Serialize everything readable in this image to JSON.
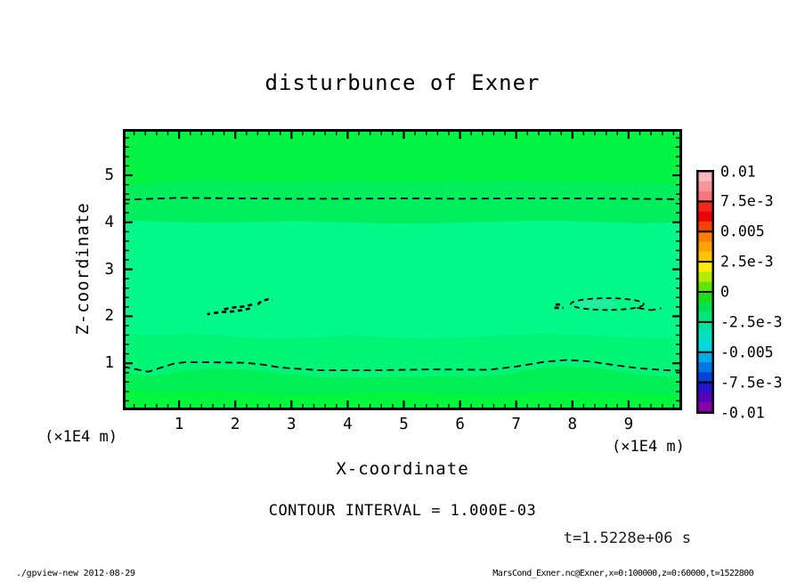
{
  "footer": {
    "left": "./gpview-new  2012-08-29",
    "right": "MarsCond_Exner.nc@Exner,x=0:100000,z=0:60000,t=1522800"
  },
  "chart_data": {
    "type": "filled_contour",
    "title": "disturbunce of Exner",
    "xlabel": "X-coordinate",
    "ylabel": "Z-coordinate",
    "x_unit_label": "(×1E4 m)",
    "y_unit_label": "(×1E4 m)",
    "x_range": [
      0,
      10
    ],
    "y_range": [
      0,
      6
    ],
    "x_major_ticks": [
      1,
      2,
      3,
      4,
      5,
      6,
      7,
      8,
      9
    ],
    "y_major_ticks": [
      1,
      2,
      3,
      4,
      5
    ],
    "minor_tick_step": 0.2,
    "grid": false,
    "contour_interval_text": "CONTOUR INTERVAL = 1.000E-03",
    "time_text": "t=1.5228e+06 s",
    "colorbar": {
      "labels": [
        "0.01",
        "7.5e-3",
        "0.005",
        "2.5e-3",
        "0",
        "-2.5e-3",
        "-0.005",
        "-7.5e-3",
        "-0.01"
      ],
      "value_top": 0.01,
      "value_bottom": -0.01,
      "band_colors": [
        "#f8b6bd",
        "#f9959d",
        "#fa747c",
        "#f4261c",
        "#ec0500",
        "#f84300",
        "#fd7e00",
        "#fea200",
        "#ffc600",
        "#fcec00",
        "#b3ea00",
        "#5fe400",
        "#1ede1c",
        "#00e151",
        "#00e57e",
        "#00e2a4",
        "#00dfc6",
        "#00d8e2",
        "#00abe6",
        "#0077e2",
        "#0043da",
        "#2414cc",
        "#5700b8",
        "#8800a6"
      ]
    },
    "field": {
      "description": "horizontal bands of Exner disturbance, values ~ -2e-3..+2e-3",
      "region_colors": [
        "#00f441",
        "#00ed5c",
        "#00f988",
        "#00f475",
        "#00ef55",
        "#00f83c"
      ],
      "boundaries": [
        [
          [
            0,
            4.8
          ],
          [
            0.4,
            4.82
          ],
          [
            0.8,
            4.88
          ],
          [
            1.4,
            4.9
          ],
          [
            2,
            4.87
          ],
          [
            2.6,
            4.84
          ],
          [
            3.2,
            4.86
          ],
          [
            4,
            4.88
          ],
          [
            5,
            4.85
          ],
          [
            6,
            4.87
          ],
          [
            7,
            4.89
          ],
          [
            8,
            4.86
          ],
          [
            9,
            4.84
          ],
          [
            9.6,
            4.82
          ],
          [
            10,
            4.8
          ]
        ],
        [
          [
            0,
            4.04
          ],
          [
            0.7,
            4.02
          ],
          [
            1.5,
            3.99
          ],
          [
            2.3,
            4.01
          ],
          [
            3.1,
            4.03
          ],
          [
            4,
            4.0
          ],
          [
            4.9,
            3.97
          ],
          [
            5.8,
            3.99
          ],
          [
            6.7,
            4.02
          ],
          [
            7.6,
            4.04
          ],
          [
            8.4,
            4.01
          ],
          [
            9.2,
            3.98
          ],
          [
            10,
            4.0
          ]
        ],
        [
          [
            0,
            1.63
          ],
          [
            0.6,
            1.6
          ],
          [
            1.2,
            1.64
          ],
          [
            1.9,
            1.58
          ],
          [
            2.6,
            1.52
          ],
          [
            3.3,
            1.55
          ],
          [
            4,
            1.6
          ],
          [
            4.7,
            1.56
          ],
          [
            5.4,
            1.52
          ],
          [
            6.1,
            1.56
          ],
          [
            6.8,
            1.6
          ],
          [
            7.5,
            1.63
          ],
          [
            8.2,
            1.6
          ],
          [
            8.9,
            1.56
          ],
          [
            9.5,
            1.53
          ],
          [
            10,
            1.56
          ]
        ],
        [
          [
            0,
            0.8
          ],
          [
            0.5,
            0.72
          ],
          [
            1,
            0.82
          ],
          [
            1.5,
            0.88
          ],
          [
            2.2,
            0.86
          ],
          [
            2.8,
            0.78
          ],
          [
            3.5,
            0.7
          ],
          [
            4.5,
            0.7
          ],
          [
            5.5,
            0.72
          ],
          [
            6.5,
            0.72
          ],
          [
            7,
            0.8
          ],
          [
            7.5,
            0.9
          ],
          [
            7.9,
            0.94
          ],
          [
            8.4,
            0.9
          ],
          [
            8.8,
            0.82
          ],
          [
            9.3,
            0.74
          ],
          [
            10,
            0.7
          ]
        ],
        [
          [
            0,
            0.42
          ],
          [
            0.8,
            0.38
          ],
          [
            1.6,
            0.42
          ],
          [
            2.4,
            0.36
          ],
          [
            3.2,
            0.32
          ],
          [
            4,
            0.36
          ],
          [
            4.8,
            0.4
          ],
          [
            5.6,
            0.36
          ],
          [
            6.4,
            0.32
          ],
          [
            7.2,
            0.36
          ],
          [
            8,
            0.42
          ],
          [
            8.8,
            0.38
          ],
          [
            9.4,
            0.34
          ],
          [
            10,
            0.32
          ]
        ]
      ]
    },
    "contour_lines": {
      "style": "dashed negative contours",
      "upper": [
        [
          0,
          4.48
        ],
        [
          0.5,
          4.5
        ],
        [
          1,
          4.52
        ],
        [
          2,
          4.51
        ],
        [
          3,
          4.5
        ],
        [
          4,
          4.5
        ],
        [
          5,
          4.51
        ],
        [
          6,
          4.5
        ],
        [
          7,
          4.51
        ],
        [
          8,
          4.51
        ],
        [
          9,
          4.5
        ],
        [
          10,
          4.49
        ]
      ],
      "lower": [
        [
          0,
          0.93
        ],
        [
          0.25,
          0.87
        ],
        [
          0.45,
          0.82
        ],
        [
          0.9,
          0.99
        ],
        [
          1.1,
          1.02
        ],
        [
          1.5,
          1.02
        ],
        [
          2.2,
          1.01
        ],
        [
          2.5,
          0.97
        ],
        [
          2.8,
          0.91
        ],
        [
          3.5,
          0.85
        ],
        [
          4.5,
          0.85
        ],
        [
          5.5,
          0.87
        ],
        [
          6.5,
          0.86
        ],
        [
          7.0,
          0.93
        ],
        [
          7.5,
          1.03
        ],
        [
          7.9,
          1.07
        ],
        [
          8.3,
          1.04
        ],
        [
          8.7,
          0.97
        ],
        [
          9.2,
          0.89
        ],
        [
          9.7,
          0.85
        ],
        [
          10,
          0.84
        ]
      ],
      "scribbles": [
        [
          [
            1.62,
            2.07
          ],
          [
            1.78,
            2.09
          ],
          [
            1.95,
            2.1
          ],
          [
            2.12,
            2.13
          ],
          [
            2.28,
            2.17
          ]
        ],
        [
          [
            1.8,
            2.15
          ],
          [
            1.98,
            2.19
          ],
          [
            2.16,
            2.21
          ],
          [
            2.34,
            2.26
          ]
        ],
        [
          [
            2.4,
            2.25
          ],
          [
            2.47,
            2.33
          ],
          [
            2.58,
            2.36
          ],
          [
            2.66,
            2.34
          ]
        ],
        [
          [
            1.5,
            2.05
          ],
          [
            1.55,
            2.05
          ]
        ],
        [
          [
            7.68,
            2.18
          ],
          [
            7.84,
            2.18
          ]
        ],
        [
          [
            7.7,
            2.25
          ],
          [
            7.79,
            2.25
          ]
        ]
      ],
      "right_oval": {
        "outline": [
          8.62,
          2.26,
          0.65,
          0.125
        ],
        "inner": [
          8.42,
          2.27,
          0.36,
          0.075
        ]
      },
      "tail": [
        [
          9.15,
          2.18
        ],
        [
          9.4,
          2.13
        ],
        [
          9.58,
          2.17
        ]
      ]
    },
    "highlight_fill": "#2ae9a6"
  }
}
